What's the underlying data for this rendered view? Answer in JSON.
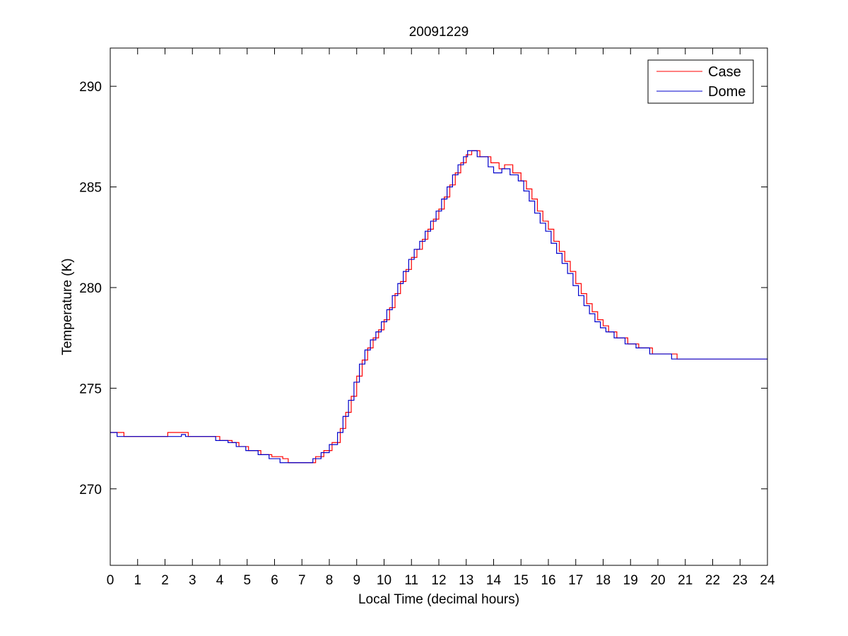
{
  "chart_data": {
    "type": "line",
    "title": "20091229",
    "xlabel": "Local Time (decimal hours)",
    "ylabel": "Temperature (K)",
    "xlim": [
      0,
      24
    ],
    "ylim": [
      266.2,
      291.9
    ],
    "xticks": [
      "0",
      "1",
      "2",
      "3",
      "4",
      "5",
      "6",
      "7",
      "8",
      "9",
      "10",
      "11",
      "12",
      "13",
      "14",
      "15",
      "16",
      "17",
      "18",
      "19",
      "20",
      "21",
      "22",
      "23",
      "24"
    ],
    "yticks": [
      "270",
      "275",
      "280",
      "285",
      "290"
    ],
    "grid": false,
    "legend_position": "top-right",
    "series": [
      {
        "name": "Case",
        "color": "#ff0000",
        "step": true,
        "points": [
          [
            0,
            272.8
          ],
          [
            0.5,
            272.6
          ],
          [
            2.1,
            272.8
          ],
          [
            2.85,
            272.6
          ],
          [
            3.8,
            272.6
          ],
          [
            4,
            272.4
          ],
          [
            4.45,
            272.3
          ],
          [
            4.7,
            272.1
          ],
          [
            5.05,
            271.9
          ],
          [
            5.5,
            271.7
          ],
          [
            5.9,
            271.6
          ],
          [
            6.3,
            271.5
          ],
          [
            6.5,
            271.3
          ],
          [
            7.2,
            271.3
          ],
          [
            7.5,
            271.6
          ],
          [
            7.8,
            271.9
          ],
          [
            8.1,
            272.3
          ],
          [
            8.4,
            273.0
          ],
          [
            8.6,
            273.8
          ],
          [
            8.8,
            274.6
          ],
          [
            9.0,
            275.6
          ],
          [
            9.2,
            276.4
          ],
          [
            9.4,
            277.0
          ],
          [
            9.6,
            277.5
          ],
          [
            9.8,
            277.9
          ],
          [
            10.0,
            278.4
          ],
          [
            10.2,
            279.0
          ],
          [
            10.4,
            279.7
          ],
          [
            10.6,
            280.3
          ],
          [
            10.8,
            280.9
          ],
          [
            11.0,
            281.5
          ],
          [
            11.2,
            281.9
          ],
          [
            11.4,
            282.4
          ],
          [
            11.6,
            282.9
          ],
          [
            11.8,
            283.4
          ],
          [
            12.0,
            283.9
          ],
          [
            12.2,
            284.5
          ],
          [
            12.4,
            285.1
          ],
          [
            12.6,
            285.7
          ],
          [
            12.8,
            286.2
          ],
          [
            13.0,
            286.6
          ],
          [
            13.2,
            286.8
          ],
          [
            13.5,
            286.5
          ],
          [
            13.9,
            286.2
          ],
          [
            14.2,
            285.9
          ],
          [
            14.4,
            286.1
          ],
          [
            14.7,
            285.7
          ],
          [
            15.0,
            285.3
          ],
          [
            15.2,
            284.9
          ],
          [
            15.4,
            284.4
          ],
          [
            15.6,
            283.8
          ],
          [
            15.8,
            283.3
          ],
          [
            16.0,
            282.9
          ],
          [
            16.2,
            282.3
          ],
          [
            16.4,
            281.8
          ],
          [
            16.6,
            281.3
          ],
          [
            16.8,
            280.8
          ],
          [
            17.0,
            280.2
          ],
          [
            17.2,
            279.7
          ],
          [
            17.4,
            279.2
          ],
          [
            17.6,
            278.8
          ],
          [
            17.8,
            278.4
          ],
          [
            18.0,
            278.1
          ],
          [
            18.2,
            277.8
          ],
          [
            18.5,
            277.5
          ],
          [
            18.9,
            277.2
          ],
          [
            19.3,
            277.0
          ],
          [
            19.8,
            276.7
          ],
          [
            20.7,
            276.45
          ],
          [
            24,
            276.45
          ]
        ]
      },
      {
        "name": "Dome",
        "color": "#0000cc",
        "step": true,
        "points": [
          [
            0,
            272.8
          ],
          [
            0.25,
            272.6
          ],
          [
            2.6,
            272.7
          ],
          [
            2.75,
            272.6
          ],
          [
            3.7,
            272.6
          ],
          [
            3.85,
            272.4
          ],
          [
            4.3,
            272.3
          ],
          [
            4.6,
            272.1
          ],
          [
            4.95,
            271.9
          ],
          [
            5.4,
            271.7
          ],
          [
            5.8,
            271.5
          ],
          [
            6.2,
            271.3
          ],
          [
            7.1,
            271.3
          ],
          [
            7.4,
            271.5
          ],
          [
            7.7,
            271.8
          ],
          [
            8.0,
            272.2
          ],
          [
            8.3,
            272.8
          ],
          [
            8.5,
            273.6
          ],
          [
            8.7,
            274.4
          ],
          [
            8.9,
            275.3
          ],
          [
            9.1,
            276.2
          ],
          [
            9.3,
            276.9
          ],
          [
            9.5,
            277.4
          ],
          [
            9.7,
            277.8
          ],
          [
            9.9,
            278.3
          ],
          [
            10.1,
            278.9
          ],
          [
            10.3,
            279.6
          ],
          [
            10.5,
            280.2
          ],
          [
            10.7,
            280.8
          ],
          [
            10.9,
            281.4
          ],
          [
            11.1,
            281.9
          ],
          [
            11.3,
            282.3
          ],
          [
            11.5,
            282.8
          ],
          [
            11.7,
            283.3
          ],
          [
            11.9,
            283.8
          ],
          [
            12.1,
            284.4
          ],
          [
            12.3,
            285.0
          ],
          [
            12.5,
            285.6
          ],
          [
            12.7,
            286.1
          ],
          [
            12.9,
            286.5
          ],
          [
            13.05,
            286.8
          ],
          [
            13.4,
            286.5
          ],
          [
            13.8,
            286.0
          ],
          [
            14.0,
            285.7
          ],
          [
            14.3,
            285.9
          ],
          [
            14.6,
            285.6
          ],
          [
            14.9,
            285.3
          ],
          [
            15.1,
            284.8
          ],
          [
            15.3,
            284.3
          ],
          [
            15.5,
            283.7
          ],
          [
            15.7,
            283.2
          ],
          [
            15.9,
            282.8
          ],
          [
            16.1,
            282.2
          ],
          [
            16.3,
            281.7
          ],
          [
            16.5,
            281.2
          ],
          [
            16.7,
            280.7
          ],
          [
            16.9,
            280.1
          ],
          [
            17.1,
            279.6
          ],
          [
            17.3,
            279.1
          ],
          [
            17.5,
            278.7
          ],
          [
            17.7,
            278.3
          ],
          [
            17.9,
            278.0
          ],
          [
            18.1,
            277.8
          ],
          [
            18.4,
            277.5
          ],
          [
            18.8,
            277.2
          ],
          [
            19.2,
            277.0
          ],
          [
            19.7,
            276.7
          ],
          [
            20.5,
            276.45
          ],
          [
            24,
            276.45
          ]
        ]
      }
    ]
  }
}
